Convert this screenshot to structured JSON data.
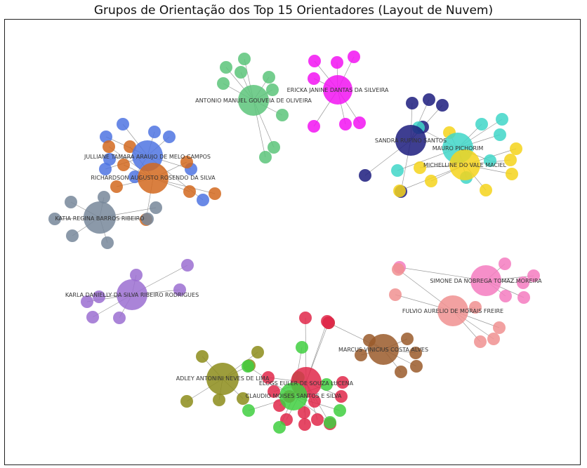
{
  "title": "Grupos de Orientação dos Top 15 Orientadores (Layout de Nuvem)",
  "supervisors": [
    {
      "name": "ANTONIO MANUEL GOUVEIA DE OLIVEIRA",
      "color": "#5cc47a"
    },
    {
      "name": "ERICKA JANINE DANTAS DA SILVEIRA",
      "color": "#f213f2"
    },
    {
      "name": "SANDRA RUFINO SANTOS",
      "color": "#1c1c7e"
    },
    {
      "name": "MAURO PICHORIM",
      "color": "#3fd6c8"
    },
    {
      "name": "MICHELLINE DO VALE MACIEL",
      "color": "#f5d31b"
    },
    {
      "name": "JULLIANE TAMARA ARAUJO DE MELO CAMPOS",
      "color": "#4f74e2"
    },
    {
      "name": "RICHARDSON AUGUSTO ROSENDO DA SILVA",
      "color": "#d2691e"
    },
    {
      "name": "KATIA REGINA BARROS RIBEIRO",
      "color": "#77879a"
    },
    {
      "name": "KARLA DANIELLY DA SILVA RIBEIRO RODRIGUES",
      "color": "#9b6fd1"
    },
    {
      "name": "SIMONE DA NOBREGA TOMAZ MOREIRA",
      "color": "#f57bc0"
    },
    {
      "name": "FULVIO AURELIO DE MORAIS FREIRE",
      "color": "#f09090"
    },
    {
      "name": "MARCUS VINICIUS COSTA ALVES",
      "color": "#9a5a2a"
    },
    {
      "name": "ADLEY ANTONINI NEVES DE LIMA",
      "color": "#8c8c1a"
    },
    {
      "name": "ELOGS EULER DE SOUZA LUCENA",
      "color": "#e0284a"
    },
    {
      "name": "CLAUDIO MOISES SANTOS E SILVA",
      "color": "#3fcf3f"
    }
  ]
}
